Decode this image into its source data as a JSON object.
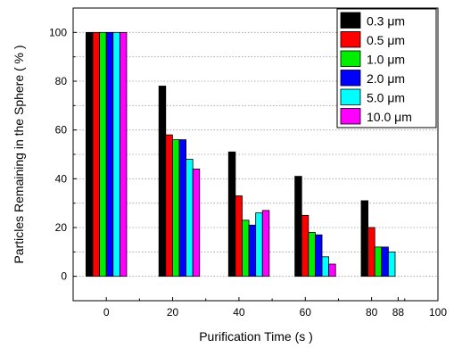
{
  "chart_data": {
    "type": "bar",
    "xlabel": "Purification Time (s )",
    "ylabel": "Particles Remaining in the Sphere ( % )",
    "ylim": [
      -10,
      110
    ],
    "xlim": [
      -10,
      100
    ],
    "y_ticks": [
      0,
      20,
      40,
      60,
      80,
      100
    ],
    "x_ticks": [
      {
        "value": 0,
        "label": "0"
      },
      {
        "value": 20,
        "label": "20"
      },
      {
        "value": 40,
        "label": "40"
      },
      {
        "value": 60,
        "label": "60"
      },
      {
        "value": 80,
        "label": "80"
      },
      {
        "value": 88,
        "label": "88"
      },
      {
        "value": 100,
        "label": "100"
      }
    ],
    "grid": "horizontal dotted",
    "legend_position": "top-right",
    "groups": [
      {
        "x": 0,
        "values": [
          100,
          100,
          100,
          100,
          100,
          100
        ]
      },
      {
        "x": 22,
        "values": [
          78,
          58,
          56,
          56,
          48,
          44
        ]
      },
      {
        "x": 43,
        "values": [
          51,
          33,
          23,
          21,
          26,
          27
        ]
      },
      {
        "x": 63,
        "values": [
          41,
          25,
          18,
          17,
          8,
          5
        ]
      },
      {
        "x": 83,
        "values": [
          31,
          20,
          12,
          12,
          10,
          null
        ]
      }
    ],
    "series": [
      {
        "name": "0.3 μm",
        "color": "#000000"
      },
      {
        "name": "0.5 μm",
        "color": "#ff0000"
      },
      {
        "name": "1.0 μm",
        "color": "#00ee00"
      },
      {
        "name": "2.0 μm",
        "color": "#0000ff"
      },
      {
        "name": "5.0 μm",
        "color": "#00ffff"
      },
      {
        "name": "10.0 μm",
        "color": "#ff00ff"
      }
    ]
  }
}
